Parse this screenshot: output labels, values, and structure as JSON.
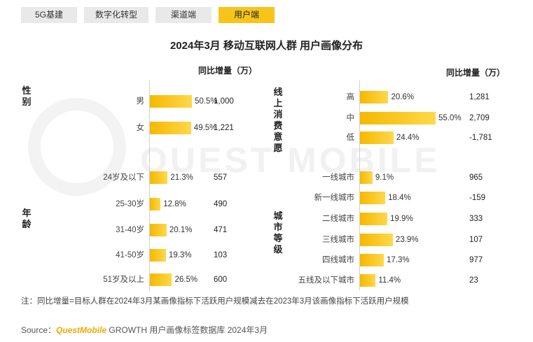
{
  "tabs": [
    {
      "label": "5G基建",
      "active": false
    },
    {
      "label": "数字化转型",
      "active": false
    },
    {
      "label": "渠道端",
      "active": false
    },
    {
      "label": "用户端",
      "active": true
    }
  ],
  "title": "2024年3月 移动互联网人群 用户画像分布",
  "col_header": "同比增量（万）",
  "watermark": "QUEST MOBILE",
  "colors": {
    "bar": "#f5b800",
    "active_tab": "#f7c41a",
    "inactive_tab": "#e9e9e9"
  },
  "chart_data": [
    {
      "type": "bar",
      "orientation": "horizontal",
      "groups": [
        {
          "name": "性别",
          "categories": [
            "男",
            "女"
          ],
          "values": [
            50.5,
            49.5
          ],
          "value_labels": [
            "50.5%",
            "49.5%"
          ],
          "increment": [
            "1,000",
            "1,221"
          ]
        },
        {
          "name": "年龄",
          "categories": [
            "24岁及以下",
            "25-30岁",
            "31-40岁",
            "41-50岁",
            "51岁及以上"
          ],
          "values": [
            21.3,
            12.8,
            20.1,
            19.3,
            26.5
          ],
          "value_labels": [
            "21.3%",
            "12.8%",
            "20.1%",
            "19.3%",
            "26.5%"
          ],
          "increment": [
            "557",
            "490",
            "471",
            "103",
            "600"
          ]
        }
      ],
      "increment_header": "同比增量（万）"
    },
    {
      "type": "bar",
      "orientation": "horizontal",
      "groups": [
        {
          "name": "线上消费意愿",
          "categories": [
            "高",
            "中",
            "低"
          ],
          "values": [
            20.6,
            55.0,
            24.4
          ],
          "value_labels": [
            "20.6%",
            "55.0%",
            "24.4%"
          ],
          "increment": [
            "1,281",
            "2,709",
            "-1,781"
          ]
        },
        {
          "name": "城市等级",
          "categories": [
            "一线城市",
            "新一线城市",
            "二线城市",
            "三线城市",
            "四线城市",
            "五线及以下城市"
          ],
          "values": [
            9.1,
            18.4,
            19.9,
            23.9,
            17.3,
            11.4
          ],
          "value_labels": [
            "9.1%",
            "18.4%",
            "19.9%",
            "23.9%",
            "17.3%",
            "11.4%"
          ],
          "increment": [
            "965",
            "-159",
            "333",
            "107",
            "977",
            "23"
          ]
        }
      ],
      "increment_header": "同比增量（万）"
    }
  ],
  "note": "注：同比增量=目标人群在2024年3月某画像指标下活跃用户规模减去在2023年3月该画像指标下活跃用户规模",
  "source": {
    "prefix": "Source：",
    "brand": "QuestMobile",
    "suffix": " GROWTH 用户画像标签数据库 2024年3月"
  }
}
